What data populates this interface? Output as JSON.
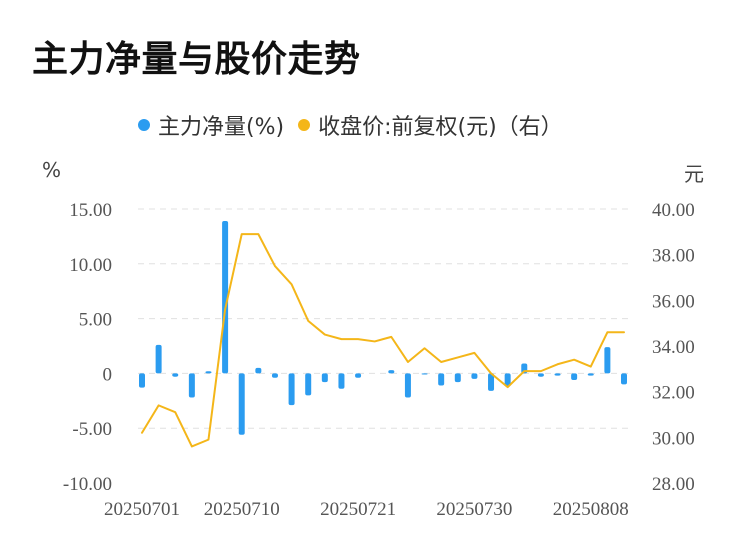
{
  "header": {
    "title": "主力净量与股价走势"
  },
  "legend": {
    "series1": "主力净量(%)",
    "series2": "收盘价:前复权(元)（右）"
  },
  "units": {
    "left": "%",
    "right": "元"
  },
  "colors": {
    "bar": "#2b9cf0",
    "line": "#f4b619",
    "grid": "#e0e0e0"
  },
  "chart_data": {
    "type": "bar+line",
    "x_tick_labels": [
      "20250701",
      "20250710",
      "20250721",
      "20250730",
      "20250808"
    ],
    "x_tick_indices": [
      0,
      6,
      13,
      20,
      27
    ],
    "left_axis": {
      "ylim": [
        -10,
        15
      ],
      "ticks": [
        "-10.00",
        "-5.00",
        "0",
        "5.00",
        "10.00",
        "15.00"
      ],
      "tick_values": [
        -10,
        -5,
        0,
        5,
        10,
        15
      ]
    },
    "right_axis": {
      "ylim": [
        28,
        40
      ],
      "ticks": [
        "28.00",
        "30.00",
        "32.00",
        "34.00",
        "36.00",
        "38.00",
        "40.00"
      ],
      "tick_values": [
        28,
        30,
        32,
        34,
        36,
        38,
        40
      ]
    },
    "series": [
      {
        "name": "主力净量(%)",
        "type": "bar",
        "axis": "left",
        "values": [
          -1.3,
          2.6,
          -0.3,
          -2.2,
          0.2,
          13.9,
          -5.6,
          0.5,
          -0.4,
          -2.9,
          -2.0,
          -0.8,
          -1.4,
          -0.4,
          0.0,
          0.3,
          -2.2,
          -0.1,
          -1.1,
          -0.8,
          -0.5,
          -1.6,
          -1.2,
          0.9,
          -0.3,
          -0.2,
          -0.6,
          -0.2,
          2.4,
          -1.0
        ]
      },
      {
        "name": "收盘价:前复权(元)（右）",
        "type": "line",
        "axis": "right",
        "values": [
          30.2,
          31.4,
          31.1,
          29.6,
          29.9,
          35.6,
          38.9,
          38.9,
          37.5,
          36.7,
          35.1,
          34.5,
          34.3,
          34.3,
          34.2,
          34.4,
          33.3,
          33.9,
          33.3,
          33.5,
          33.7,
          32.8,
          32.2,
          32.9,
          32.9,
          33.2,
          33.4,
          33.1,
          34.6,
          34.6
        ]
      }
    ]
  }
}
